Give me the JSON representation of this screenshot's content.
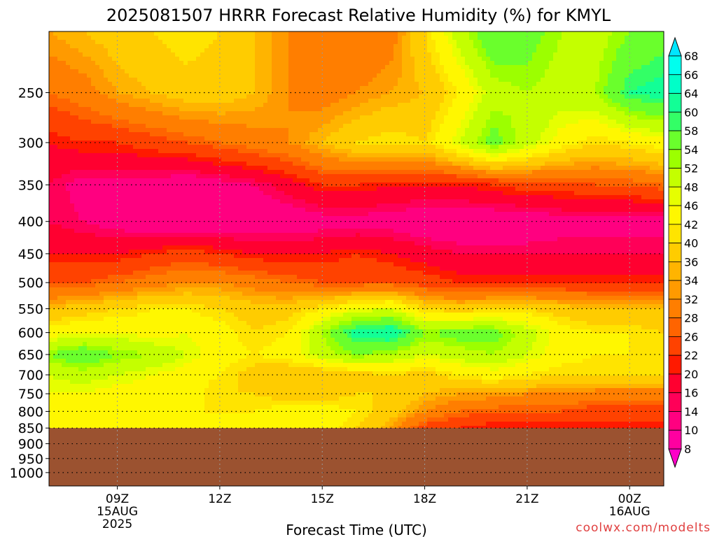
{
  "chart_data": {
    "type": "heatmap",
    "title": "2025081507 HRRR Forecast Relative Humidity (%) for KMYL",
    "xlabel": "Forecast Time (UTC)",
    "ylabel": "",
    "x_ticks": [
      {
        "hour": 9,
        "label": "09Z",
        "sub": [
          "15AUG",
          "2025"
        ]
      },
      {
        "hour": 12,
        "label": "12Z",
        "sub": []
      },
      {
        "hour": 15,
        "label": "15Z",
        "sub": []
      },
      {
        "hour": 18,
        "label": "18Z",
        "sub": []
      },
      {
        "hour": 21,
        "label": "21Z",
        "sub": []
      },
      {
        "hour": 24,
        "label": "00Z",
        "sub": [
          "16AUG"
        ]
      }
    ],
    "xlim": [
      7,
      25
    ],
    "y_ticks": [
      250,
      300,
      350,
      400,
      450,
      500,
      550,
      600,
      650,
      700,
      750,
      800,
      850,
      900,
      950,
      1000
    ],
    "ylim": [
      200,
      1050
    ],
    "y_scale": "log",
    "ground_level_hpa": 850,
    "ground_color": "#9b5230",
    "colorbar_levels": [
      8,
      10,
      14,
      16,
      20,
      22,
      26,
      28,
      32,
      34,
      36,
      40,
      42,
      46,
      48,
      52,
      54,
      58,
      60,
      64,
      66,
      68
    ],
    "colorbar_colors": [
      "#ff00c8",
      "#ff00a0",
      "#ff0080",
      "#ff0058",
      "#ff0030",
      "#ff1a00",
      "#ff4200",
      "#ff6400",
      "#ff7e00",
      "#ff9a00",
      "#ffb400",
      "#ffcc00",
      "#ffe400",
      "#fff700",
      "#e6ff00",
      "#c4ff00",
      "#9cff00",
      "#6aff2c",
      "#33ff66",
      "#12ff96",
      "#00ffc8",
      "#00ffee",
      "#00e6ff"
    ],
    "grid_lines": true,
    "legend": "colorbar-right",
    "rh_field": {
      "x_hours": [
        7,
        8,
        9,
        10,
        11,
        12,
        13,
        14,
        15,
        16,
        17,
        18,
        19,
        20,
        21,
        22,
        23,
        24,
        25
      ],
      "levels_hpa": [
        200,
        250,
        300,
        350,
        400,
        450,
        500,
        550,
        600,
        650,
        700,
        750,
        800,
        850
      ],
      "values": [
        [
          34,
          36,
          38,
          40,
          42,
          40,
          36,
          32,
          30,
          28,
          30,
          40,
          50,
          58,
          56,
          52,
          50,
          54,
          56
        ],
        [
          28,
          30,
          34,
          36,
          38,
          38,
          36,
          32,
          30,
          32,
          34,
          36,
          42,
          50,
          52,
          50,
          52,
          60,
          62
        ],
        [
          20,
          22,
          22,
          24,
          26,
          28,
          30,
          32,
          36,
          40,
          42,
          40,
          48,
          56,
          50,
          44,
          40,
          42,
          44
        ],
        [
          16,
          12,
          12,
          12,
          10,
          12,
          14,
          18,
          22,
          22,
          20,
          20,
          20,
          22,
          24,
          24,
          26,
          26,
          28
        ],
        [
          16,
          14,
          12,
          10,
          10,
          10,
          10,
          10,
          12,
          12,
          12,
          10,
          10,
          10,
          10,
          12,
          12,
          12,
          12
        ],
        [
          20,
          20,
          20,
          22,
          24,
          22,
          20,
          20,
          20,
          22,
          20,
          18,
          16,
          16,
          16,
          16,
          16,
          16,
          16
        ],
        [
          26,
          26,
          28,
          30,
          32,
          32,
          30,
          28,
          26,
          26,
          26,
          24,
          22,
          22,
          22,
          22,
          22,
          22,
          22
        ],
        [
          36,
          38,
          40,
          42,
          42,
          40,
          38,
          38,
          42,
          46,
          48,
          40,
          38,
          40,
          40,
          38,
          36,
          36,
          36
        ],
        [
          44,
          46,
          46,
          44,
          46,
          44,
          40,
          42,
          52,
          62,
          64,
          54,
          56,
          56,
          50,
          44,
          42,
          42,
          40
        ],
        [
          54,
          58,
          54,
          52,
          48,
          44,
          42,
          44,
          50,
          54,
          52,
          48,
          50,
          52,
          48,
          44,
          42,
          42,
          42
        ],
        [
          48,
          50,
          48,
          46,
          44,
          42,
          38,
          36,
          36,
          38,
          40,
          38,
          42,
          44,
          42,
          40,
          40,
          40,
          40
        ],
        [
          46,
          46,
          44,
          44,
          44,
          40,
          40,
          38,
          38,
          40,
          40,
          36,
          34,
          34,
          32,
          32,
          30,
          30,
          30
        ],
        [
          42,
          42,
          44,
          44,
          42,
          42,
          42,
          44,
          44,
          42,
          38,
          32,
          28,
          26,
          26,
          26,
          24,
          24,
          24
        ],
        [
          44,
          44,
          44,
          46,
          46,
          46,
          46,
          46,
          44,
          40,
          34,
          24,
          22,
          20,
          20,
          20,
          20,
          20,
          20
        ]
      ]
    }
  },
  "watermark": "coolwx.com/modelts"
}
